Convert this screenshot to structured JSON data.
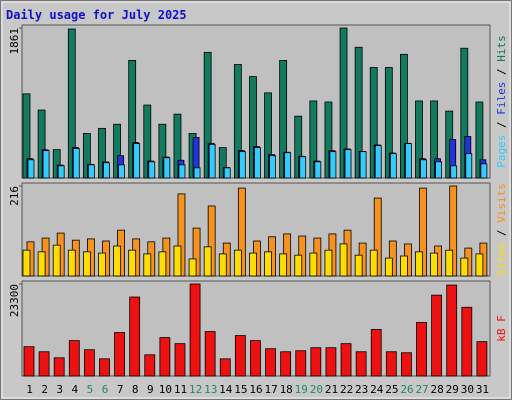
{
  "title": "Daily usage for July 2025",
  "legend_separator": " / ",
  "chart_data": [
    {
      "type": "bar",
      "ylim": [
        0,
        1861
      ],
      "yticks": [
        1861
      ],
      "series": [
        {
          "name": "Hits",
          "color": "#127a5e",
          "values": [
            1044,
            843,
            352,
            1849,
            553,
            616,
            667,
            1459,
            905,
            667,
            792,
            553,
            1559,
            377,
            1408,
            1258,
            1056,
            1459,
            767,
            956,
            943,
            1861,
            1622,
            1371,
            1371,
            1534,
            956,
            956,
            830,
            1610,
            943
          ]
        },
        {
          "name": "Files",
          "color": "#2233dd",
          "values": [
            240,
            350,
            160,
            380,
            170,
            200,
            277,
            440,
            210,
            260,
            220,
            503,
            430,
            130,
            340,
            390,
            290,
            320,
            270,
            210,
            340,
            360,
            330,
            410,
            310,
            430,
            240,
            239,
            478,
            515,
            226
          ]
        },
        {
          "name": "Pages",
          "color": "#33ccff",
          "values": [
            226,
            339,
            151,
            365,
            163,
            189,
            163,
            427,
            201,
            251,
            163,
            126,
            415,
            126,
            327,
            377,
            277,
            314,
            264,
            201,
            327,
            352,
            327,
            402,
            302,
            427,
            226,
            201,
            151,
            302,
            176
          ]
        }
      ]
    },
    {
      "type": "bar",
      "ylim": [
        0,
        216
      ],
      "yticks": [
        216
      ],
      "series": [
        {
          "name": "Visits",
          "color": "#f7921e",
          "values": [
            82,
            91,
            103,
            86,
            89,
            84,
            110,
            89,
            82,
            91,
            197,
            115,
            168,
            79,
            211,
            84,
            94,
            101,
            96,
            91,
            101,
            110,
            79,
            187,
            84,
            77,
            211,
            72,
            216,
            67,
            79
          ]
        },
        {
          "name": "Sites",
          "color": "#ffdd00",
          "values": [
            62,
            58,
            74,
            62,
            58,
            55,
            72,
            62,
            53,
            58,
            72,
            41,
            70,
            53,
            62,
            55,
            58,
            53,
            50,
            55,
            62,
            77,
            50,
            62,
            43,
            48,
            58,
            55,
            62,
            43,
            53
          ]
        }
      ]
    },
    {
      "type": "bar",
      "ylim": [
        0,
        23300
      ],
      "yticks": [
        23300
      ],
      "categories": [
        "1",
        "2",
        "3",
        "4",
        "5",
        "6",
        "7",
        "8",
        "9",
        "10",
        "11",
        "12",
        "13",
        "14",
        "15",
        "16",
        "17",
        "18",
        "19",
        "20",
        "21",
        "22",
        "23",
        "24",
        "25",
        "26",
        "27",
        "28",
        "29",
        "30",
        "31"
      ],
      "category_colors": [
        "#000000",
        "#000000",
        "#000000",
        "#000000",
        "#228866",
        "#228866",
        "#000000",
        "#000000",
        "#000000",
        "#000000",
        "#000000",
        "#228866",
        "#228866",
        "#000000",
        "#000000",
        "#000000",
        "#000000",
        "#000000",
        "#228866",
        "#228866",
        "#000000",
        "#000000",
        "#000000",
        "#000000",
        "#000000",
        "#228866",
        "#228866",
        "#000000",
        "#000000",
        "#000000",
        "#000000"
      ],
      "series": [
        {
          "name": "kB F",
          "color": "#ee1111",
          "values": [
            7424,
            6144,
            4608,
            8960,
            6656,
            4352,
            11008,
            20000,
            5376,
            9728,
            8192,
            23300,
            11264,
            4352,
            10240,
            8960,
            6912,
            6144,
            6400,
            7168,
            7168,
            8192,
            6144,
            11776,
            6144,
            5888,
            13568,
            20480,
            23040,
            17408,
            8704
          ]
        }
      ]
    }
  ]
}
